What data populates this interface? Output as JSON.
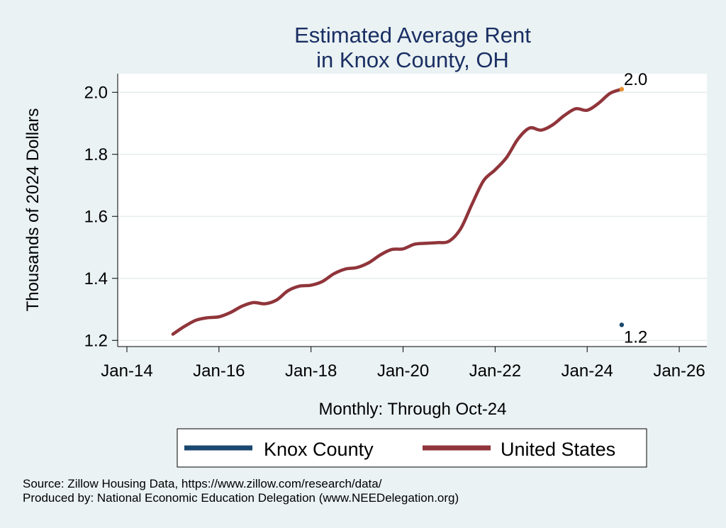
{
  "colors": {
    "background": "#eaf2f3",
    "plot_background": "#ffffff",
    "title": "#1a2f63",
    "knox": "#1a476f",
    "us": "#90353b",
    "us_end_marker": "#e8902e"
  },
  "notes": {
    "source": "Source: Zillow Housing Data, https://www.zillow.com/research/data/",
    "produced": "Produced by: National Economic Education Delegation (www.NEEDelegation.org)"
  },
  "chart_data": {
    "type": "line",
    "title": [
      "Estimated Average Rent",
      "in Knox County, OH"
    ],
    "xlabel": "Monthly: Through Oct-24",
    "ylabel": "Thousands of 2024 Dollars",
    "xlim": [
      2013.8,
      2026.6
    ],
    "ylim": [
      1.18,
      2.06
    ],
    "x_ticks": [
      {
        "value": 2014,
        "label": "Jan-14"
      },
      {
        "value": 2016,
        "label": "Jan-16"
      },
      {
        "value": 2018,
        "label": "Jan-18"
      },
      {
        "value": 2020,
        "label": "Jan-20"
      },
      {
        "value": 2022,
        "label": "Jan-22"
      },
      {
        "value": 2024,
        "label": "Jan-24"
      },
      {
        "value": 2026,
        "label": "Jan-26"
      }
    ],
    "y_ticks": [
      {
        "value": 1.2,
        "label": "1.2"
      },
      {
        "value": 1.4,
        "label": "1.4"
      },
      {
        "value": 1.6,
        "label": "1.6"
      },
      {
        "value": 1.8,
        "label": "1.8"
      },
      {
        "value": 2.0,
        "label": "2.0"
      }
    ],
    "grid": true,
    "legend": {
      "position": "bottom",
      "entries": [
        "Knox County",
        "United States"
      ]
    },
    "series": [
      {
        "name": "Knox County",
        "color": "#1a476f",
        "points": [
          [
            2024.75,
            1.25
          ]
        ],
        "end_label": "1.2"
      },
      {
        "name": "United States",
        "color": "#90353b",
        "end_label": "2.0",
        "points": [
          [
            2015.0,
            1.22
          ],
          [
            2015.25,
            1.245
          ],
          [
            2015.5,
            1.265
          ],
          [
            2015.75,
            1.273
          ],
          [
            2016.0,
            1.276
          ],
          [
            2016.25,
            1.29
          ],
          [
            2016.5,
            1.31
          ],
          [
            2016.75,
            1.322
          ],
          [
            2017.0,
            1.318
          ],
          [
            2017.25,
            1.33
          ],
          [
            2017.5,
            1.36
          ],
          [
            2017.75,
            1.375
          ],
          [
            2018.0,
            1.378
          ],
          [
            2018.25,
            1.39
          ],
          [
            2018.5,
            1.415
          ],
          [
            2018.75,
            1.43
          ],
          [
            2019.0,
            1.435
          ],
          [
            2019.25,
            1.45
          ],
          [
            2019.5,
            1.475
          ],
          [
            2019.75,
            1.493
          ],
          [
            2020.0,
            1.495
          ],
          [
            2020.25,
            1.51
          ],
          [
            2020.5,
            1.513
          ],
          [
            2020.75,
            1.515
          ],
          [
            2021.0,
            1.52
          ],
          [
            2021.25,
            1.56
          ],
          [
            2021.5,
            1.64
          ],
          [
            2021.75,
            1.715
          ],
          [
            2022.0,
            1.75
          ],
          [
            2022.25,
            1.79
          ],
          [
            2022.5,
            1.85
          ],
          [
            2022.75,
            1.885
          ],
          [
            2023.0,
            1.878
          ],
          [
            2023.25,
            1.895
          ],
          [
            2023.5,
            1.925
          ],
          [
            2023.75,
            1.947
          ],
          [
            2024.0,
            1.942
          ],
          [
            2024.25,
            1.965
          ],
          [
            2024.5,
            1.997
          ],
          [
            2024.75,
            2.01
          ]
        ]
      }
    ]
  }
}
